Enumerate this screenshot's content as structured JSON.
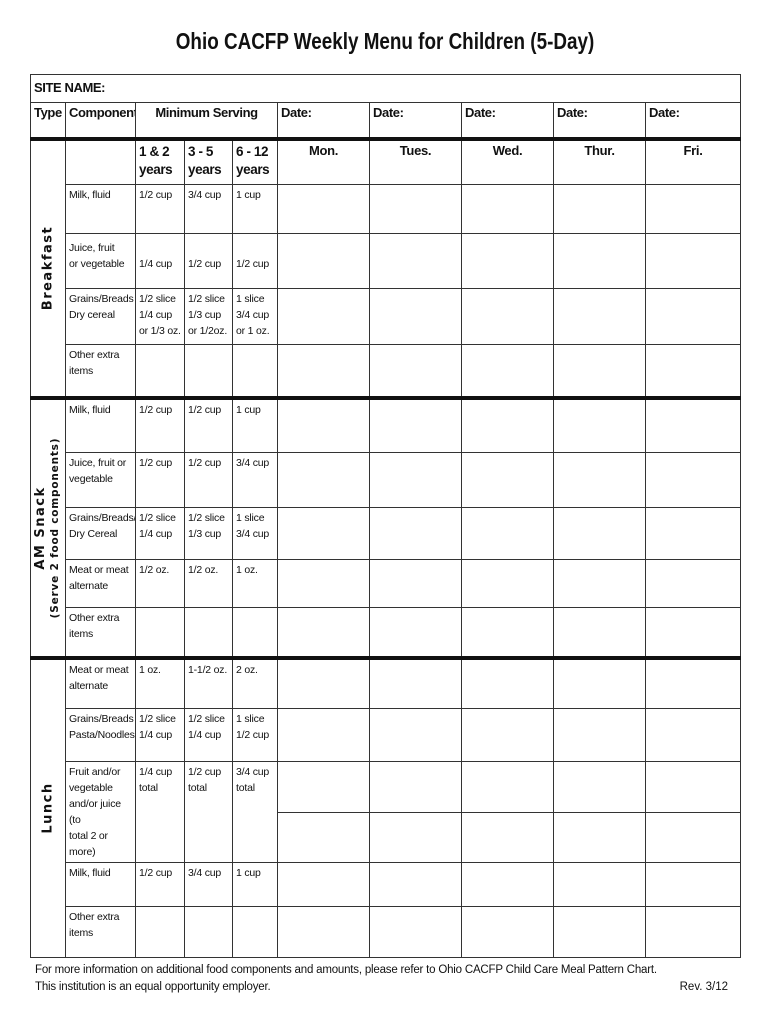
{
  "title": "Ohio CACFP Weekly Menu for Children (5-Day)",
  "site_name_label": "SITE NAME:",
  "headers": {
    "type": "Type",
    "component": "Component",
    "minimum_serving": "Minimum Serving",
    "date_label": "Date:"
  },
  "age_groups": [
    [
      "1 & 2",
      "years"
    ],
    [
      "3 - 5",
      "years"
    ],
    [
      "6 - 12",
      "years"
    ]
  ],
  "days": [
    "Mon.",
    "Tues.",
    "Wed.",
    "Thur.",
    "Fri."
  ],
  "sections": [
    {
      "label": "Breakfast",
      "sublabel": "",
      "rows": [
        {
          "component": [
            "Milk, fluid"
          ],
          "servings": [
            [
              "1/2 cup"
            ],
            [
              "3/4 cup"
            ],
            [
              "1 cup"
            ]
          ]
        },
        {
          "component": [
            "Juice, fruit",
            "or vegetable"
          ],
          "servings": [
            [
              "1/4 cup"
            ],
            [
              "1/2 cup"
            ],
            [
              "1/2 cup"
            ]
          ],
          "offset": true
        },
        {
          "component": [
            "Grains/Breads",
            "Dry cereal"
          ],
          "servings": [
            [
              "1/2 slice",
              "1/4 cup",
              "or 1/3 oz."
            ],
            [
              "1/2 slice",
              "1/3 cup",
              "or 1/2oz."
            ],
            [
              "1 slice",
              "3/4 cup",
              "or 1 oz."
            ]
          ]
        },
        {
          "component": [
            "Other extra",
            "items"
          ],
          "servings": [
            [],
            [],
            []
          ]
        }
      ]
    },
    {
      "label": "AM Snack",
      "sublabel": "(Serve 2 food components)",
      "rows": [
        {
          "component": [
            "Milk, fluid"
          ],
          "servings": [
            [
              "1/2 cup"
            ],
            [
              "1/2 cup"
            ],
            [
              "1 cup"
            ]
          ]
        },
        {
          "component": [
            "Juice, fruit or",
            "vegetable"
          ],
          "servings": [
            [
              "1/2 cup"
            ],
            [
              "1/2 cup"
            ],
            [
              "3/4 cup"
            ]
          ]
        },
        {
          "component": [
            "Grains/Breads/",
            "Dry Cereal"
          ],
          "servings": [
            [
              "1/2 slice",
              "1/4  cup"
            ],
            [
              "1/2 slice",
              "1/3 cup"
            ],
            [
              "1 slice",
              "3/4 cup"
            ]
          ]
        },
        {
          "component": [
            "Meat or meat",
            "alternate"
          ],
          "servings": [
            [
              "1/2 oz."
            ],
            [
              "1/2 oz."
            ],
            [
              "1 oz."
            ]
          ]
        },
        {
          "component": [
            "Other extra",
            "items"
          ],
          "servings": [
            [],
            [],
            []
          ]
        }
      ]
    },
    {
      "label": "Lunch",
      "sublabel": "",
      "rows": [
        {
          "component": [
            "Meat or meat",
            "alternate"
          ],
          "servings": [
            [
              "1 oz."
            ],
            [
              "1-1/2 oz."
            ],
            [
              "2 oz."
            ]
          ]
        },
        {
          "component": [
            "Grains/Breads",
            "Pasta/Noodles"
          ],
          "servings": [
            [
              "1/2 slice",
              "1/4 cup"
            ],
            [
              "1/2 slice",
              "1/4 cup"
            ],
            [
              "1 slice",
              "1/2 cup"
            ]
          ]
        },
        {
          "component": [
            "Fruit and/or",
            "vegetable",
            "and/or juice (to",
            "total 2 or more)"
          ],
          "servings": [
            [
              "1/4 cup",
              "total"
            ],
            [
              "1/2 cup",
              "total"
            ],
            [
              "3/4 cup",
              "total"
            ]
          ],
          "split": true
        },
        {
          "component": [
            "Milk, fluid"
          ],
          "servings": [
            [
              "1/2 cup"
            ],
            [
              "3/4 cup"
            ],
            [
              "1 cup"
            ]
          ]
        },
        {
          "component": [
            "Other extra",
            "items"
          ],
          "servings": [
            [],
            [],
            []
          ]
        }
      ]
    }
  ],
  "footer": {
    "info": "For more information on additional food components and amounts, please refer to Ohio CACFP Child Care Meal Pattern Chart.",
    "equal_opportunity": "This institution is an equal opportunity employer.",
    "revision": "Rev. 3/12"
  }
}
